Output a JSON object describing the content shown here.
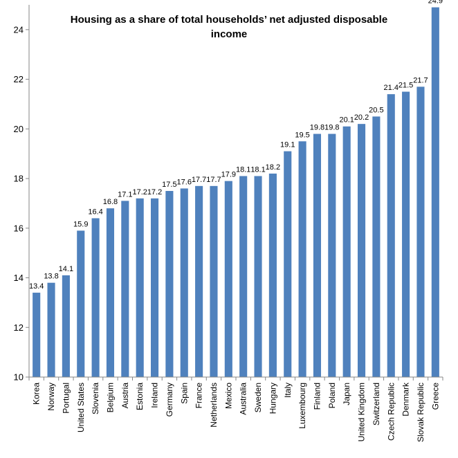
{
  "chart_data": {
    "type": "bar",
    "title_line1": "Housing as a share of total households’ net adjusted disposable",
    "title_line2": "income",
    "xlabel": "",
    "ylabel": "",
    "ylim": [
      10,
      25
    ],
    "yticks": [
      10,
      12,
      14,
      16,
      18,
      20,
      22,
      24
    ],
    "grid": false,
    "bar_color": "#4f81bd",
    "categories": [
      "Korea",
      "Norway",
      "Portugal",
      "United States",
      "Slovenia",
      "Belgium",
      "Austria",
      "Estonia",
      "Ireland",
      "Germany",
      "Spain",
      "France",
      "Netherlands",
      "Mexico",
      "Australia",
      "Sweden",
      "Hungary",
      "Italy",
      "Luxembourg",
      "Finland",
      "Poland",
      "Japan",
      "United Kingdom",
      "Switzerland",
      "Czech Republic",
      "Denmark",
      "Slovak Republic",
      "Greece"
    ],
    "values": [
      13.4,
      13.8,
      14.1,
      15.9,
      16.4,
      16.8,
      17.1,
      17.2,
      17.2,
      17.5,
      17.6,
      17.7,
      17.7,
      17.9,
      18.1,
      18.1,
      18.2,
      19.1,
      19.5,
      19.8,
      19.8,
      20.1,
      20.2,
      20.5,
      21.4,
      21.5,
      21.7,
      24.9
    ],
    "value_labels": [
      "13.4",
      "13.8",
      "14.1",
      "15.9",
      "16.4",
      "16.8",
      "17.1",
      "17.2",
      "17.2",
      "17.5",
      "17.6",
      "17.7",
      "17.7",
      "17.9",
      "18.1",
      "18.1",
      "18.2",
      "19.1",
      "19.5",
      "19.8",
      "19.8",
      "20.1",
      "20.2",
      "20.5",
      "21.4",
      "21.5",
      "21.7",
      "24.9"
    ]
  }
}
